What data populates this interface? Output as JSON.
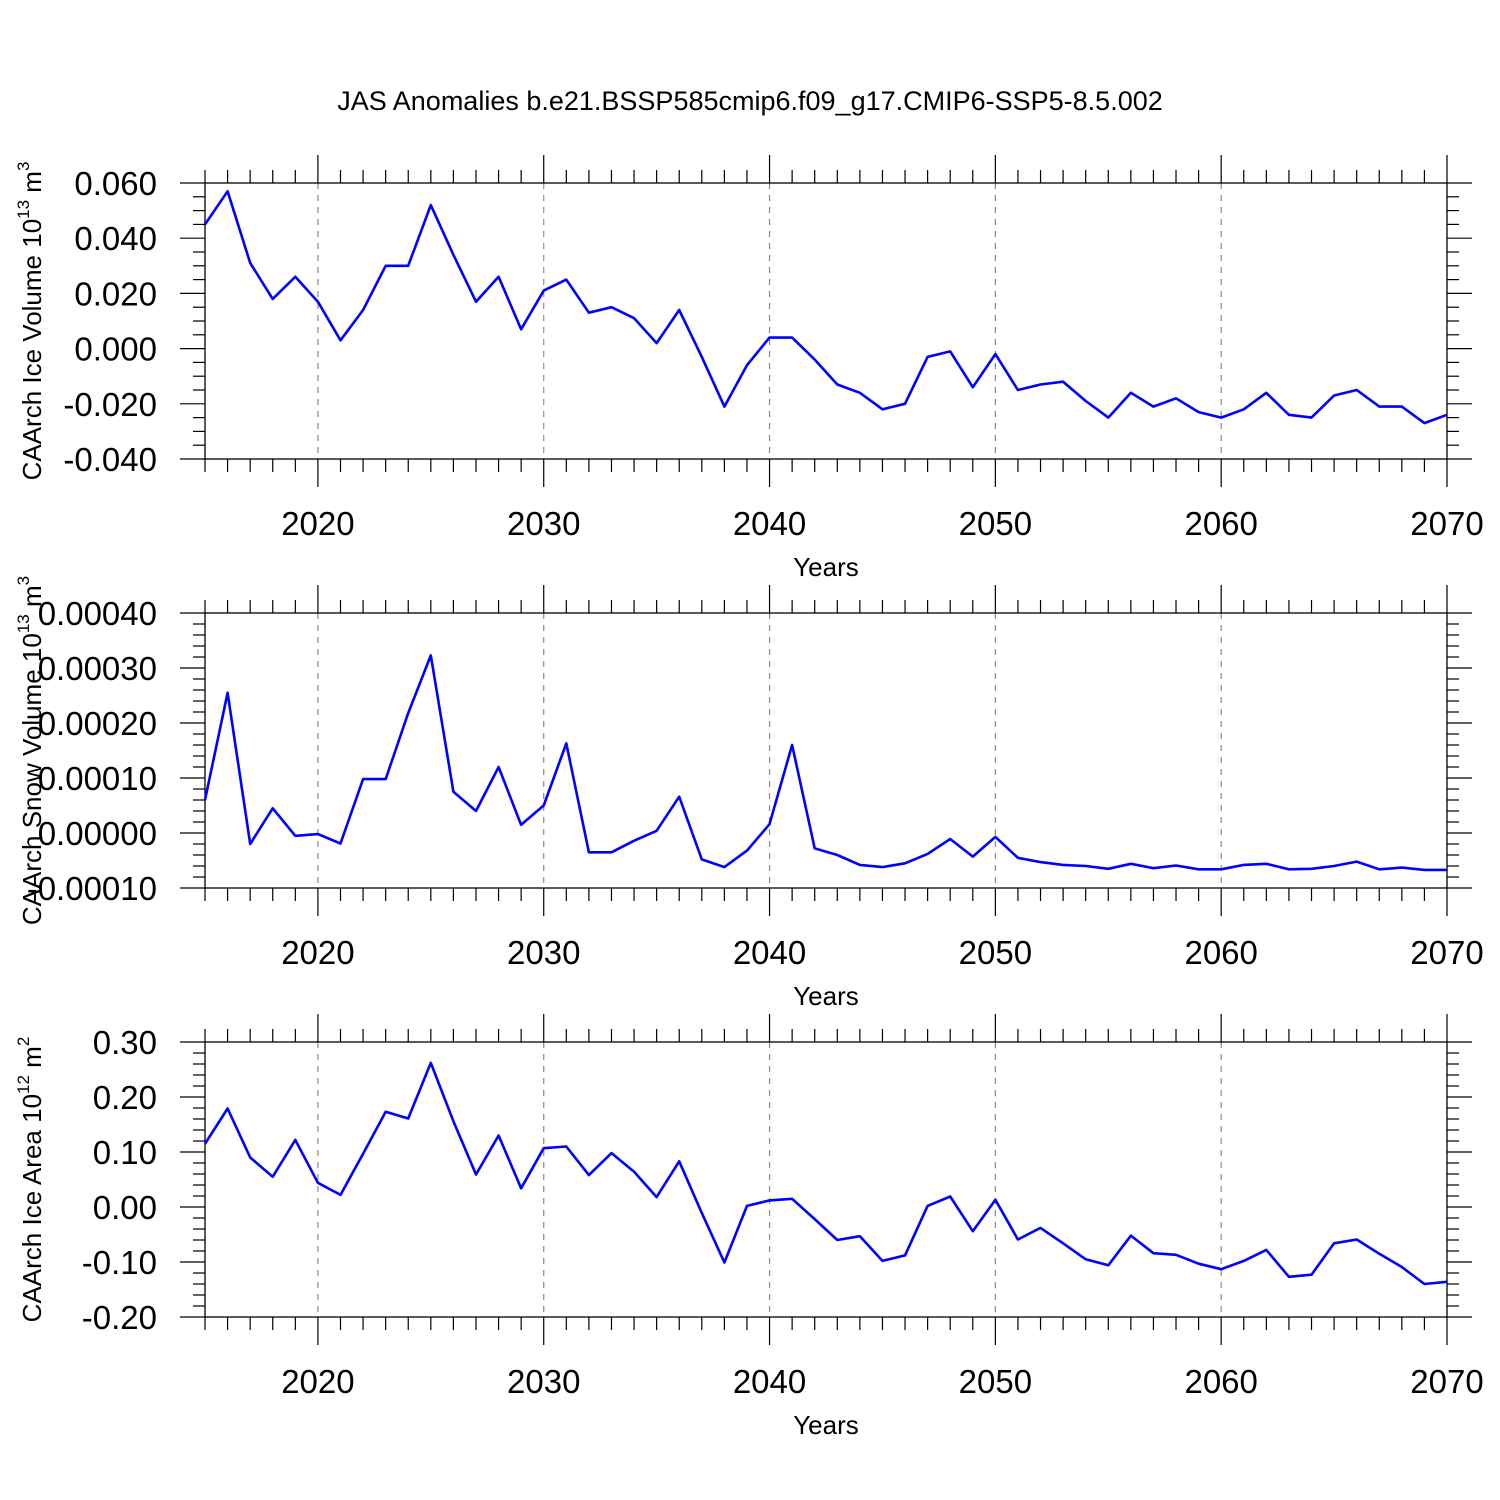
{
  "title": "JAS Anomalies b.e21.BSSP585cmip6.f09_g17.CMIP6-SSP5-8.5.002",
  "colors": {
    "line": "#0000ff",
    "axis": "#000000",
    "grid": "#8a8a8a"
  },
  "chart_data": [
    {
      "type": "line",
      "ylabel_main": "CAArch Ice Volume 10",
      "ylabel_exp": "13",
      "ylabel_unit": " m",
      "ylabel_unit_exp": "3",
      "xlabel": "Years",
      "xlim": [
        2015,
        2070
      ],
      "ylim": [
        -0.04,
        0.06
      ],
      "xticks": [
        2020,
        2030,
        2040,
        2050,
        2060,
        2070
      ],
      "xtick_labels": [
        "2020",
        "2030",
        "2040",
        "2050",
        "2060",
        "2070"
      ],
      "yticks": [
        -0.04,
        -0.02,
        0.0,
        0.02,
        0.04,
        0.06
      ],
      "ytick_labels": [
        "-0.040",
        "-0.020",
        "0.000",
        "0.020",
        "0.040",
        "0.060"
      ],
      "y_minor_step": 0.005,
      "grid_x": true,
      "x": [
        2015,
        2016,
        2017,
        2018,
        2019,
        2020,
        2021,
        2022,
        2023,
        2024,
        2025,
        2026,
        2027,
        2028,
        2029,
        2030,
        2031,
        2032,
        2033,
        2034,
        2035,
        2036,
        2037,
        2038,
        2039,
        2040,
        2041,
        2042,
        2043,
        2044,
        2045,
        2046,
        2047,
        2048,
        2049,
        2050,
        2051,
        2052,
        2053,
        2054,
        2055,
        2056,
        2057,
        2058,
        2059,
        2060,
        2061,
        2062,
        2063,
        2064,
        2065,
        2066,
        2067,
        2068,
        2069,
        2070
      ],
      "values": [
        0.045,
        0.057,
        0.031,
        0.018,
        0.026,
        0.017,
        0.003,
        0.014,
        0.03,
        0.03,
        0.052,
        0.034,
        0.017,
        0.026,
        0.007,
        0.021,
        0.025,
        0.013,
        0.015,
        0.011,
        0.002,
        0.014,
        -0.003,
        -0.021,
        -0.006,
        0.004,
        0.004,
        -0.004,
        -0.013,
        -0.016,
        -0.022,
        -0.02,
        -0.003,
        -0.001,
        -0.014,
        -0.002,
        -0.015,
        -0.013,
        -0.012,
        -0.019,
        -0.025,
        -0.016,
        -0.021,
        -0.018,
        -0.023,
        -0.025,
        -0.022,
        -0.016,
        -0.024,
        -0.025,
        -0.017,
        -0.015,
        -0.021,
        -0.021,
        -0.027,
        -0.024
      ]
    },
    {
      "type": "line",
      "ylabel_main": "CAArch Snow Volume 10",
      "ylabel_exp": "13",
      "ylabel_unit": " m",
      "ylabel_unit_exp": "3",
      "xlabel": "Years",
      "xlim": [
        2015,
        2070
      ],
      "ylim": [
        -0.0001,
        0.0004
      ],
      "xticks": [
        2020,
        2030,
        2040,
        2050,
        2060,
        2070
      ],
      "xtick_labels": [
        "2020",
        "2030",
        "2040",
        "2050",
        "2060",
        "2070"
      ],
      "yticks": [
        -0.0001,
        0.0,
        0.0001,
        0.0002,
        0.0003,
        0.0004
      ],
      "ytick_labels": [
        "-0.00010",
        "0.00000",
        "0.00010",
        "0.00020",
        "0.00030",
        "0.00040"
      ],
      "y_minor_step": 2e-05,
      "grid_x": true,
      "x": [
        2015,
        2016,
        2017,
        2018,
        2019,
        2020,
        2021,
        2022,
        2023,
        2024,
        2025,
        2026,
        2027,
        2028,
        2029,
        2030,
        2031,
        2032,
        2033,
        2034,
        2035,
        2036,
        2037,
        2038,
        2039,
        2040,
        2041,
        2042,
        2043,
        2044,
        2045,
        2046,
        2047,
        2048,
        2049,
        2050,
        2051,
        2052,
        2053,
        2054,
        2055,
        2056,
        2057,
        2058,
        2059,
        2060,
        2061,
        2062,
        2063,
        2064,
        2065,
        2066,
        2067,
        2068,
        2069,
        2070
      ],
      "values": [
        6e-05,
        0.000255,
        -2e-05,
        4.5e-05,
        -5e-06,
        -2e-06,
        -1.9e-05,
        9.8e-05,
        9.8e-05,
        0.000218,
        0.000323,
        7.5e-05,
        4e-05,
        0.00012,
        1.5e-05,
        5e-05,
        0.000163,
        -3.5e-05,
        -3.5e-05,
        -1.4e-05,
        4e-06,
        6.6e-05,
        -4.8e-05,
        -6.2e-05,
        -3.2e-05,
        1.6e-05,
        0.00016,
        -2.8e-05,
        -4e-05,
        -5.8e-05,
        -6.2e-05,
        -5.5e-05,
        -3.8e-05,
        -1.1e-05,
        -4.3e-05,
        -7e-06,
        -4.5e-05,
        -5.3e-05,
        -5.8e-05,
        -6e-05,
        -6.5e-05,
        -5.6e-05,
        -6.4e-05,
        -5.9e-05,
        -6.6e-05,
        -6.6e-05,
        -5.8e-05,
        -5.6e-05,
        -6.6e-05,
        -6.5e-05,
        -6e-05,
        -5.2e-05,
        -6.6e-05,
        -6.3e-05,
        -6.7e-05,
        -6.7e-05
      ]
    },
    {
      "type": "line",
      "ylabel_main": "CAArch Ice Area 10",
      "ylabel_exp": "12",
      "ylabel_unit": " m",
      "ylabel_unit_exp": "2",
      "xlabel": "Years",
      "xlim": [
        2015,
        2070
      ],
      "ylim": [
        -0.2,
        0.3
      ],
      "xticks": [
        2020,
        2030,
        2040,
        2050,
        2060,
        2070
      ],
      "xtick_labels": [
        "2020",
        "2030",
        "2040",
        "2050",
        "2060",
        "2070"
      ],
      "yticks": [
        -0.2,
        -0.1,
        0.0,
        0.1,
        0.2,
        0.3
      ],
      "ytick_labels": [
        "-0.20",
        "-0.10",
        "0.00",
        "0.10",
        "0.20",
        "0.30"
      ],
      "y_minor_step": 0.02,
      "grid_x": true,
      "x": [
        2015,
        2016,
        2017,
        2018,
        2019,
        2020,
        2021,
        2022,
        2023,
        2024,
        2025,
        2026,
        2027,
        2028,
        2029,
        2030,
        2031,
        2032,
        2033,
        2034,
        2035,
        2036,
        2037,
        2038,
        2039,
        2040,
        2041,
        2042,
        2043,
        2044,
        2045,
        2046,
        2047,
        2048,
        2049,
        2050,
        2051,
        2052,
        2053,
        2054,
        2055,
        2056,
        2057,
        2058,
        2059,
        2060,
        2061,
        2062,
        2063,
        2064,
        2065,
        2066,
        2067,
        2068,
        2069,
        2070
      ],
      "values": [
        0.115,
        0.179,
        0.09,
        0.055,
        0.122,
        0.044,
        0.022,
        0.097,
        0.173,
        0.161,
        0.262,
        0.156,
        0.059,
        0.13,
        0.034,
        0.107,
        0.11,
        0.058,
        0.098,
        0.064,
        0.018,
        0.083,
        -0.011,
        -0.101,
        0.002,
        0.012,
        0.015,
        -0.022,
        -0.06,
        -0.053,
        -0.098,
        -0.088,
        0.002,
        0.019,
        -0.044,
        0.013,
        -0.059,
        -0.038,
        -0.066,
        -0.095,
        -0.106,
        -0.052,
        -0.084,
        -0.087,
        -0.103,
        -0.113,
        -0.098,
        -0.078,
        -0.127,
        -0.123,
        -0.066,
        -0.059,
        -0.085,
        -0.109,
        -0.14,
        -0.136
      ]
    }
  ]
}
